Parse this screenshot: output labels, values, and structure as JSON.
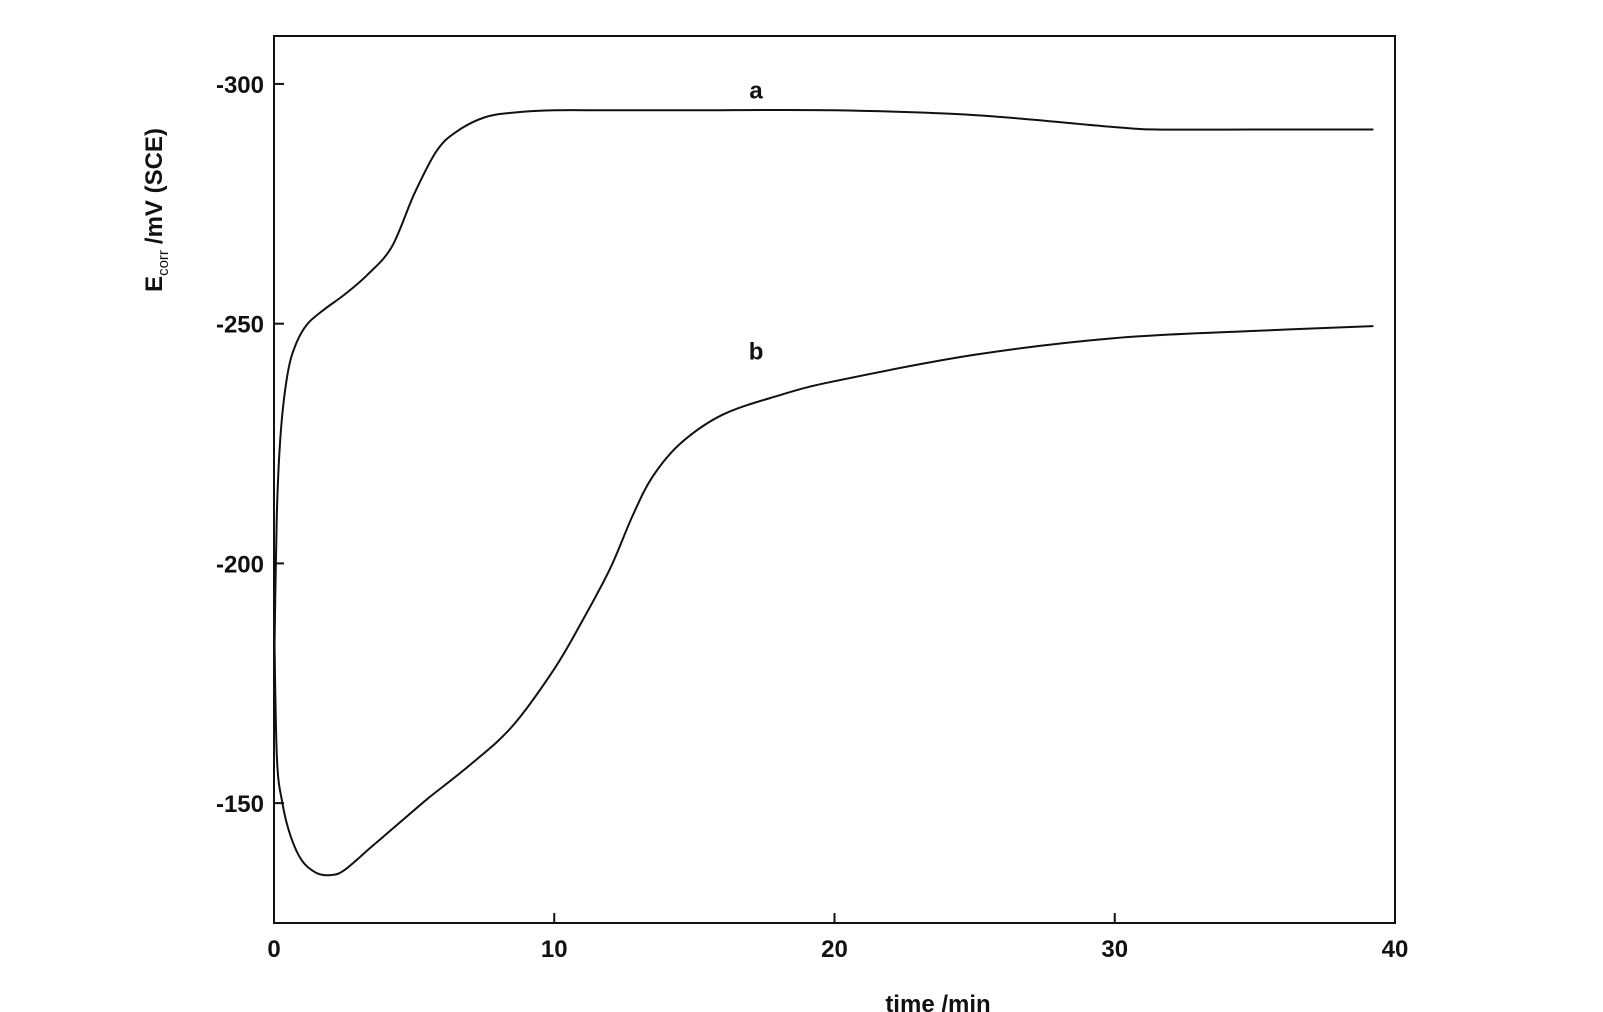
{
  "chart_data": {
    "type": "line",
    "title": "",
    "xlabel": "time /min",
    "ylabel": {
      "main": "E",
      "subscript": "corr",
      "rest": "/mV (SCE)"
    },
    "xlim": [
      0,
      40
    ],
    "ylim": [
      -125,
      -310
    ],
    "x_ticks": [
      0,
      10,
      20,
      30,
      40
    ],
    "x_tick_labels": [
      "0",
      "10",
      "20",
      "30",
      "40"
    ],
    "y_ticks": [
      -300,
      -250,
      -200,
      -150
    ],
    "y_tick_labels": [
      "-300",
      "-250",
      "-200",
      "-150"
    ],
    "grid": false,
    "legend": "none",
    "series": [
      {
        "name": "a",
        "x": [
          0,
          0.1,
          0.25,
          0.5,
          0.8,
          1.2,
          1.8,
          2.5,
          3.3,
          4.2,
          5.0,
          5.8,
          6.5,
          7.5,
          8.5,
          10,
          12,
          15,
          20,
          25,
          30,
          31.5,
          35,
          39.2
        ],
        "values": [
          -175,
          -210,
          -228,
          -240,
          -246,
          -250,
          -253,
          -256,
          -260,
          -266,
          -277,
          -286,
          -290,
          -293,
          -294,
          -294.5,
          -294.5,
          -294.5,
          -294.5,
          -293.5,
          -291,
          -290.5,
          -290.5,
          -290.5
        ]
      },
      {
        "name": "b",
        "x": [
          0,
          0.1,
          0.3,
          0.6,
          1.0,
          1.5,
          2.0,
          2.5,
          3.5,
          4.5,
          5.5,
          7,
          8.5,
          10,
          11,
          12,
          12.8,
          13.5,
          14.5,
          16,
          18,
          20,
          25,
          30,
          35,
          39.2
        ],
        "values": [
          -190,
          -160,
          -150,
          -143,
          -138,
          -135.5,
          -135,
          -136,
          -141,
          -146,
          -151,
          -158,
          -166,
          -178,
          -188,
          -199,
          -210,
          -218,
          -225,
          -231,
          -235,
          -238,
          -243.5,
          -247,
          -248.5,
          -249.5
        ]
      }
    ],
    "series_labels": [
      {
        "text": "a",
        "x": 17.2,
        "y": -297
      },
      {
        "text": "b",
        "x": 17.2,
        "y": -242.5
      }
    ]
  }
}
